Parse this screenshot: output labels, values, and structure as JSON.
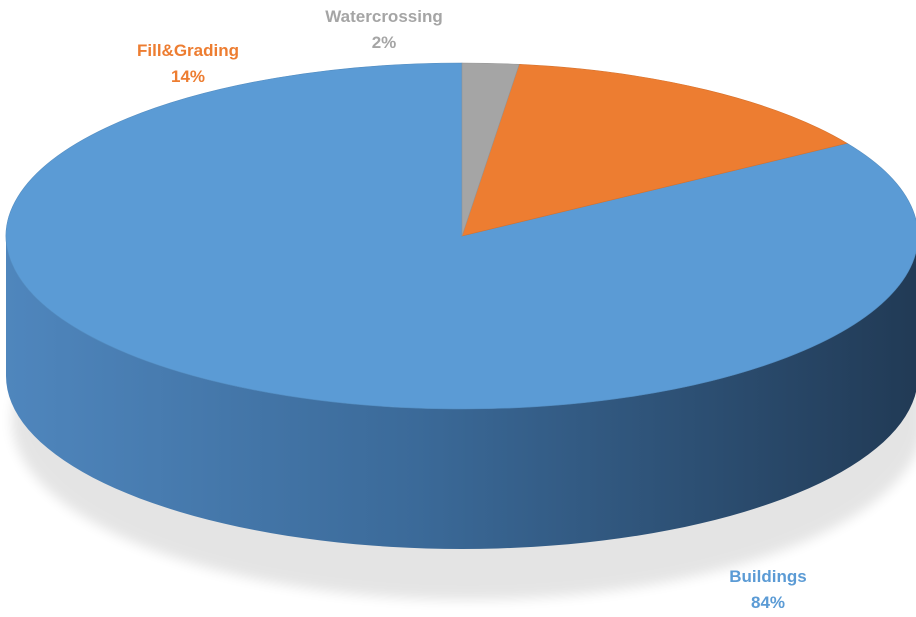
{
  "chart_data": {
    "type": "pie",
    "style": "3d",
    "title": "",
    "categories": [
      "Buildings",
      "Fill&Grading",
      "Watercrossing"
    ],
    "values": [
      84,
      14,
      2
    ],
    "value_labels": [
      "84%",
      "14%",
      "2%"
    ],
    "colors": [
      "#5B9BD5",
      "#ED7D31",
      "#A5A5A5"
    ],
    "legend": "none",
    "data_label_placement": "outside"
  }
}
